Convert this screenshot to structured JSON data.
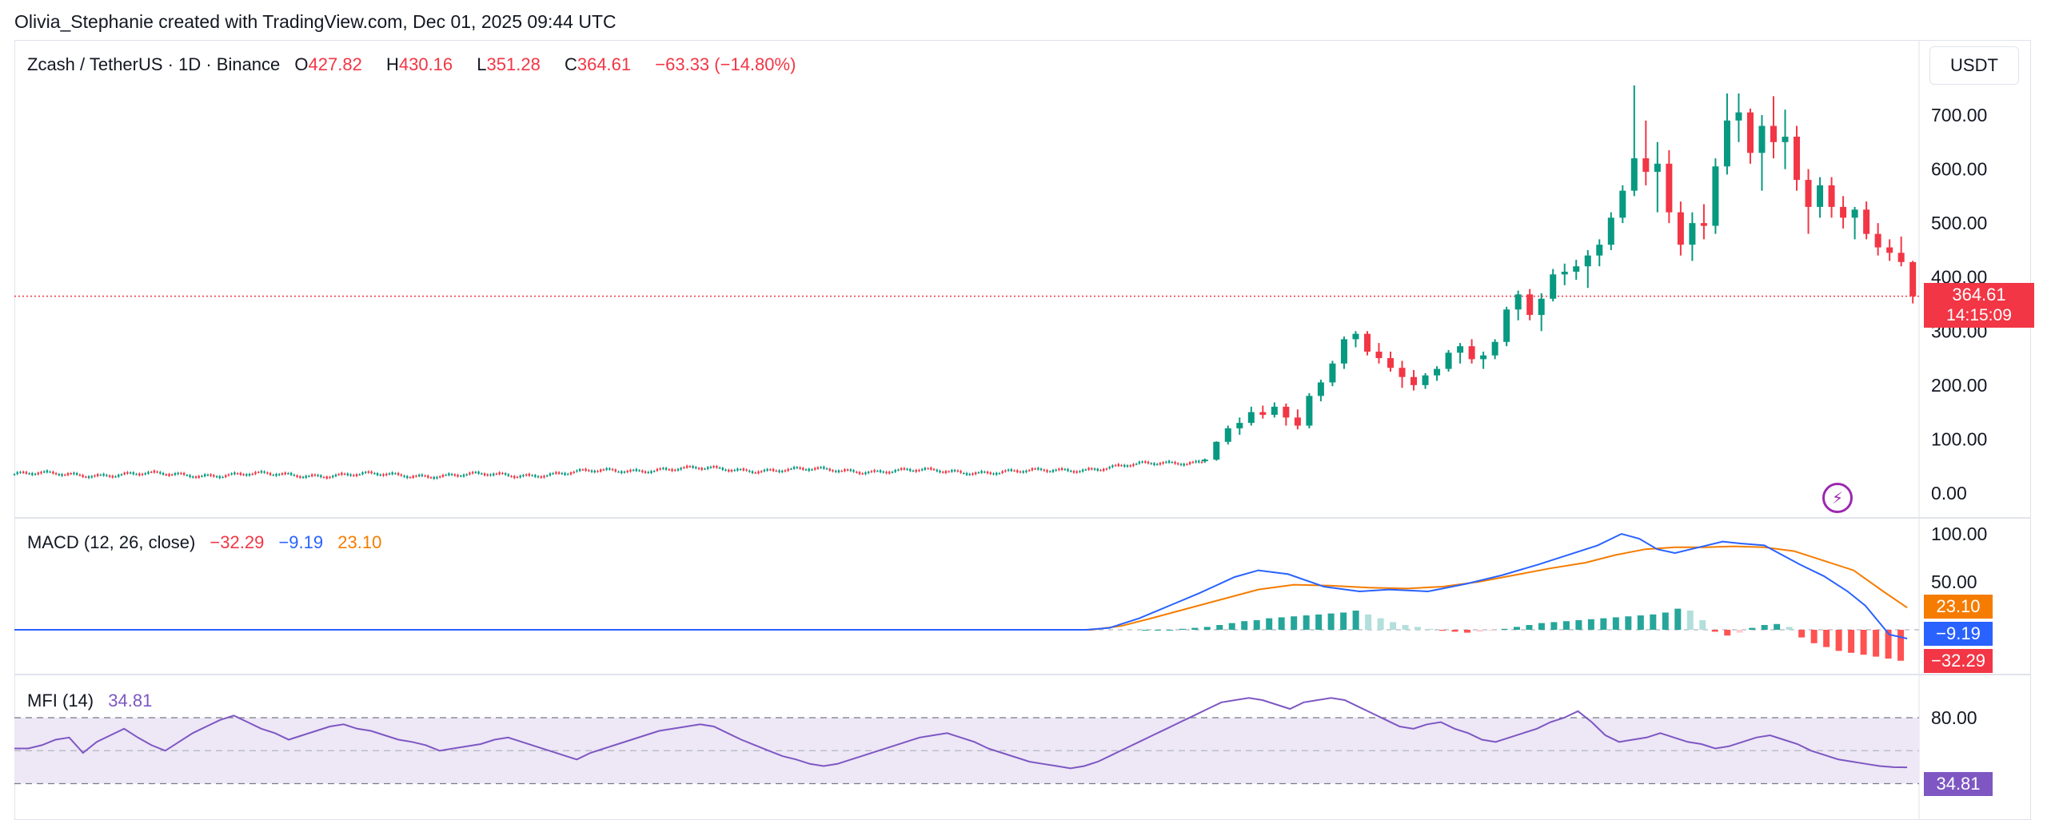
{
  "header": {
    "credit": "Olivia_Stephanie created with TradingView.com, Dec 01, 2025 09:44 UTC"
  },
  "legend": {
    "symbol": "Zcash / TetherUS · 1D · Binance",
    "open_label": "O",
    "open": "427.82",
    "high_label": "H",
    "high": "430.16",
    "low_label": "L",
    "low": "351.28",
    "close_label": "C",
    "close": "364.61",
    "change": "−63.33 (−14.80%)"
  },
  "price_scale": {
    "currency": "USDT",
    "last_price": "364.61",
    "countdown": "14:15:09"
  },
  "macd_legend": {
    "label": "MACD (12, 26, close)",
    "hist": "−32.29",
    "macd": "−9.19",
    "signal": "23.10"
  },
  "mfi_legend": {
    "label": "MFI (14)",
    "value": "34.81"
  },
  "colors": {
    "up": "#089981",
    "down": "#f23645",
    "macd": "#2962ff",
    "signal": "#f57c00",
    "mfi": "#7e57c2",
    "mfi_band": "#ede7f6"
  },
  "icons": {
    "replay": "lightning-icon"
  },
  "chart_data": [
    {
      "type": "candlestick",
      "ylim": [
        0,
        750
      ],
      "ticks": [
        "700.00",
        "600.00",
        "500.00",
        "400.00",
        "300.00",
        "200.00",
        "100.00",
        "0.00"
      ],
      "series": [
        {
          "name": "Zcash / TetherUS",
          "segments": [
            {
              "from": 0,
              "to": 168,
              "start": 35,
              "end": 33
            },
            {
              "from": 168,
              "to": 218,
              "start": 33,
              "end": 45
            },
            {
              "from": 218,
              "to": 340,
              "start": 45,
              "end": 39
            },
            {
              "from": 340,
              "to": 360,
              "start": 39,
              "end": 45
            },
            {
              "from": 360,
              "to": 400,
              "start": 45,
              "end": 60
            }
          ],
          "candles": [
            {
              "o": 60,
              "h": 64,
              "l": 56,
              "c": 62
            },
            {
              "o": 62,
              "h": 96,
              "l": 60,
              "c": 95
            },
            {
              "o": 95,
              "h": 125,
              "l": 90,
              "c": 120
            },
            {
              "o": 120,
              "h": 140,
              "l": 108,
              "c": 130
            },
            {
              "o": 130,
              "h": 160,
              "l": 125,
              "c": 150
            },
            {
              "o": 150,
              "h": 162,
              "l": 138,
              "c": 145
            },
            {
              "o": 145,
              "h": 168,
              "l": 140,
              "c": 160
            },
            {
              "o": 160,
              "h": 166,
              "l": 125,
              "c": 140
            },
            {
              "o": 140,
              "h": 155,
              "l": 118,
              "c": 125
            },
            {
              "o": 125,
              "h": 185,
              "l": 120,
              "c": 180
            },
            {
              "o": 180,
              "h": 210,
              "l": 170,
              "c": 205
            },
            {
              "o": 205,
              "h": 245,
              "l": 198,
              "c": 240
            },
            {
              "o": 240,
              "h": 290,
              "l": 230,
              "c": 285
            },
            {
              "o": 285,
              "h": 300,
              "l": 270,
              "c": 295
            },
            {
              "o": 295,
              "h": 300,
              "l": 255,
              "c": 262
            },
            {
              "o": 262,
              "h": 278,
              "l": 240,
              "c": 250
            },
            {
              "o": 250,
              "h": 262,
              "l": 225,
              "c": 232
            },
            {
              "o": 232,
              "h": 245,
              "l": 195,
              "c": 215
            },
            {
              "o": 215,
              "h": 228,
              "l": 190,
              "c": 200
            },
            {
              "o": 200,
              "h": 222,
              "l": 193,
              "c": 218
            },
            {
              "o": 218,
              "h": 235,
              "l": 208,
              "c": 230
            },
            {
              "o": 230,
              "h": 265,
              "l": 225,
              "c": 260
            },
            {
              "o": 260,
              "h": 278,
              "l": 240,
              "c": 272
            },
            {
              "o": 272,
              "h": 285,
              "l": 240,
              "c": 248
            },
            {
              "o": 248,
              "h": 262,
              "l": 230,
              "c": 255
            },
            {
              "o": 255,
              "h": 285,
              "l": 248,
              "c": 280
            },
            {
              "o": 280,
              "h": 345,
              "l": 272,
              "c": 340
            },
            {
              "o": 340,
              "h": 375,
              "l": 320,
              "c": 368
            },
            {
              "o": 368,
              "h": 378,
              "l": 320,
              "c": 330
            },
            {
              "o": 330,
              "h": 370,
              "l": 300,
              "c": 360
            },
            {
              "o": 360,
              "h": 415,
              "l": 355,
              "c": 405
            },
            {
              "o": 405,
              "h": 425,
              "l": 385,
              "c": 410
            },
            {
              "o": 410,
              "h": 432,
              "l": 395,
              "c": 420
            },
            {
              "o": 420,
              "h": 450,
              "l": 380,
              "c": 440
            },
            {
              "o": 440,
              "h": 470,
              "l": 420,
              "c": 460
            },
            {
              "o": 460,
              "h": 520,
              "l": 450,
              "c": 510
            },
            {
              "o": 510,
              "h": 570,
              "l": 500,
              "c": 560
            },
            {
              "o": 560,
              "h": 755,
              "l": 550,
              "c": 620
            },
            {
              "o": 620,
              "h": 690,
              "l": 570,
              "c": 595
            },
            {
              "o": 595,
              "h": 650,
              "l": 520,
              "c": 610
            },
            {
              "o": 610,
              "h": 635,
              "l": 500,
              "c": 520
            },
            {
              "o": 520,
              "h": 540,
              "l": 440,
              "c": 460
            },
            {
              "o": 460,
              "h": 520,
              "l": 430,
              "c": 500
            },
            {
              "o": 500,
              "h": 535,
              "l": 470,
              "c": 495
            },
            {
              "o": 495,
              "h": 620,
              "l": 480,
              "c": 605
            },
            {
              "o": 605,
              "h": 740,
              "l": 590,
              "c": 690
            },
            {
              "o": 690,
              "h": 740,
              "l": 650,
              "c": 705
            },
            {
              "o": 705,
              "h": 712,
              "l": 610,
              "c": 630
            },
            {
              "o": 630,
              "h": 700,
              "l": 560,
              "c": 680
            },
            {
              "o": 680,
              "h": 735,
              "l": 620,
              "c": 650
            },
            {
              "o": 650,
              "h": 710,
              "l": 600,
              "c": 660
            },
            {
              "o": 660,
              "h": 680,
              "l": 560,
              "c": 580
            },
            {
              "o": 580,
              "h": 600,
              "l": 480,
              "c": 530
            },
            {
              "o": 530,
              "h": 585,
              "l": 510,
              "c": 570
            },
            {
              "o": 570,
              "h": 585,
              "l": 510,
              "c": 530
            },
            {
              "o": 530,
              "h": 550,
              "l": 490,
              "c": 510
            },
            {
              "o": 510,
              "h": 530,
              "l": 470,
              "c": 525
            },
            {
              "o": 525,
              "h": 540,
              "l": 470,
              "c": 480
            },
            {
              "o": 480,
              "h": 500,
              "l": 440,
              "c": 455
            },
            {
              "o": 455,
              "h": 470,
              "l": 430,
              "c": 445
            },
            {
              "o": 445,
              "h": 475,
              "l": 420,
              "c": 428
            },
            {
              "o": 427.82,
              "h": 430.16,
              "l": 351.28,
              "c": 364.61
            }
          ]
        }
      ]
    },
    {
      "type": "macd",
      "ticks": [
        "100.00",
        "50.00"
      ],
      "series": [
        {
          "name": "MACD",
          "points": [
            [
              0,
              0
            ],
            [
              360,
              0
            ],
            [
              368,
              2
            ],
            [
              378,
              12
            ],
            [
              388,
              25
            ],
            [
              398,
              38
            ],
            [
              410,
              55
            ],
            [
              418,
              62
            ],
            [
              428,
              58
            ],
            [
              440,
              45
            ],
            [
              452,
              40
            ],
            [
              462,
              42
            ],
            [
              475,
              40
            ],
            [
              488,
              48
            ],
            [
              500,
              57
            ],
            [
              512,
              68
            ],
            [
              522,
              78
            ],
            [
              532,
              88
            ],
            [
              540,
              100
            ],
            [
              546,
              95
            ],
            [
              552,
              84
            ],
            [
              558,
              80
            ],
            [
              566,
              86
            ],
            [
              574,
              92
            ],
            [
              580,
              90
            ],
            [
              588,
              88
            ],
            [
              594,
              78
            ],
            [
              600,
              68
            ],
            [
              608,
              56
            ],
            [
              616,
              40
            ],
            [
              622,
              25
            ],
            [
              630,
              -5
            ],
            [
              636,
              -9.19
            ]
          ]
        },
        {
          "name": "Signal",
          "points": [
            [
              0,
              0
            ],
            [
              362,
              0
            ],
            [
              372,
              4
            ],
            [
              382,
              12
            ],
            [
              394,
              22
            ],
            [
              406,
              32
            ],
            [
              418,
              42
            ],
            [
              430,
              47
            ],
            [
              442,
              46
            ],
            [
              455,
              44
            ],
            [
              468,
              43
            ],
            [
              480,
              45
            ],
            [
              492,
              50
            ],
            [
              504,
              57
            ],
            [
              516,
              64
            ],
            [
              528,
              70
            ],
            [
              538,
              78
            ],
            [
              548,
              84
            ],
            [
              558,
              86
            ],
            [
              568,
              86
            ],
            [
              578,
              87
            ],
            [
              588,
              86
            ],
            [
              598,
              82
            ],
            [
              608,
              72
            ],
            [
              618,
              62
            ],
            [
              628,
              40
            ],
            [
              636,
              23.1
            ]
          ]
        },
        {
          "name": "Histogram",
          "values": [
            0,
            0,
            0,
            1,
            2,
            3,
            5,
            7,
            9,
            10,
            12,
            13,
            14,
            15,
            16,
            17,
            18,
            20,
            16,
            12,
            8,
            5,
            3,
            1,
            -1,
            -2,
            -3,
            -2,
            -1,
            1,
            3,
            5,
            7,
            8,
            9,
            10,
            11,
            12,
            13,
            14,
            15,
            16,
            18,
            22,
            20,
            10,
            -2,
            -6,
            -3,
            2,
            5,
            6,
            3,
            -8,
            -14,
            -18,
            -22,
            -24,
            -26,
            -28,
            -30,
            -32.29
          ]
        }
      ]
    },
    {
      "type": "mfi",
      "ticks": [
        "80.00"
      ],
      "series": [
        {
          "name": "MFI",
          "values": [
            52,
            52,
            55,
            60,
            62,
            48,
            58,
            64,
            70,
            62,
            55,
            50,
            58,
            66,
            72,
            78,
            82,
            76,
            70,
            66,
            60,
            64,
            68,
            72,
            74,
            70,
            68,
            64,
            60,
            58,
            55,
            50,
            52,
            54,
            56,
            60,
            62,
            58,
            54,
            50,
            46,
            42,
            48,
            52,
            56,
            60,
            64,
            68,
            70,
            72,
            74,
            72,
            66,
            60,
            55,
            50,
            45,
            42,
            38,
            36,
            38,
            42,
            46,
            50,
            54,
            58,
            62,
            64,
            66,
            62,
            58,
            52,
            48,
            44,
            40,
            38,
            36,
            34,
            36,
            40,
            46,
            52,
            58,
            64,
            70,
            76,
            82,
            88,
            94,
            96,
            98,
            96,
            92,
            88,
            94,
            96,
            98,
            96,
            90,
            84,
            78,
            72,
            70,
            74,
            76,
            70,
            66,
            60,
            58,
            62,
            66,
            70,
            76,
            80,
            86,
            76,
            64,
            58,
            60,
            62,
            66,
            62,
            58,
            56,
            52,
            54,
            58,
            62,
            64,
            60,
            56,
            50,
            46,
            42,
            40,
            38,
            36,
            35,
            34.81
          ]
        }
      ]
    }
  ]
}
